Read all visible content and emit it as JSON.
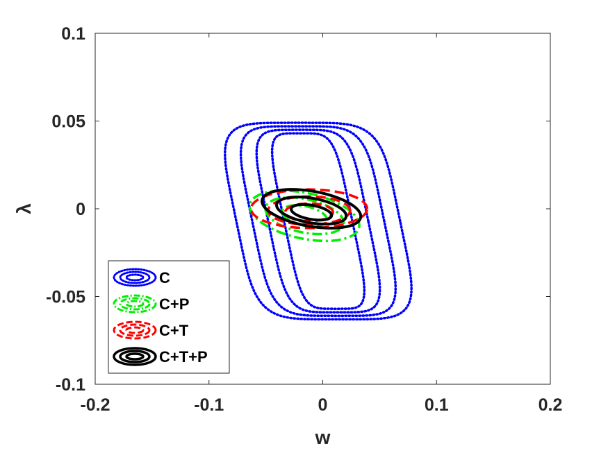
{
  "chart_data": {
    "type": "contour",
    "xlabel": "w",
    "ylabel": "λ",
    "xlim": [
      -0.2,
      0.2
    ],
    "ylim": [
      -0.1,
      0.1
    ],
    "xticks": [
      "-0.2",
      "-0.1",
      "0",
      "0.1",
      "0.2"
    ],
    "yticks": [
      "-0.1",
      "-0.05",
      "0",
      "0.05",
      "0.1"
    ],
    "grid": false,
    "legend_position": "bottom-left",
    "series": [
      {
        "name": "C",
        "color": "#0000ff",
        "line_style": "dotted",
        "shape": "rounded-rectangle",
        "contours": [
          {
            "center": [
              -0.004,
              -0.007
            ],
            "half_width": 0.072,
            "half_height": 0.056,
            "skew": -0.32
          },
          {
            "center": [
              -0.004,
              -0.007
            ],
            "half_width": 0.058,
            "half_height": 0.054,
            "skew": -0.32
          },
          {
            "center": [
              -0.004,
              -0.007
            ],
            "half_width": 0.044,
            "half_height": 0.052,
            "skew": -0.32
          },
          {
            "center": [
              -0.004,
              -0.007
            ],
            "half_width": 0.03,
            "half_height": 0.05,
            "skew": -0.32
          }
        ]
      },
      {
        "name": "C+P",
        "color": "#00ee00",
        "line_style": "dash-dot",
        "shape": "ellipse",
        "contours": [
          {
            "center": [
              -0.016,
              -0.004
            ],
            "rx": 0.049,
            "ry": 0.013,
            "rotation_deg": 12
          },
          {
            "center": [
              -0.016,
              -0.004
            ],
            "rx": 0.035,
            "ry": 0.0095,
            "rotation_deg": 12
          },
          {
            "center": [
              -0.016,
              -0.004
            ],
            "rx": 0.02,
            "ry": 0.0055,
            "rotation_deg": 12
          }
        ]
      },
      {
        "name": "C+T",
        "color": "#ff0000",
        "line_style": "dashed",
        "shape": "ellipse",
        "contours": [
          {
            "center": [
              -0.012,
              0.0
            ],
            "rx": 0.051,
            "ry": 0.011,
            "rotation_deg": 0
          },
          {
            "center": [
              -0.012,
              -0.001
            ],
            "rx": 0.036,
            "ry": 0.008,
            "rotation_deg": 0
          },
          {
            "center": [
              -0.012,
              -0.002
            ],
            "rx": 0.021,
            "ry": 0.005,
            "rotation_deg": 0
          }
        ]
      },
      {
        "name": "C+T+P",
        "color": "#000000",
        "line_style": "solid",
        "shape": "ellipse",
        "contours": [
          {
            "center": [
              -0.01,
              0.0
            ],
            "rx": 0.044,
            "ry": 0.01,
            "rotation_deg": 10
          },
          {
            "center": [
              -0.01,
              -0.001
            ],
            "rx": 0.031,
            "ry": 0.007,
            "rotation_deg": 10
          },
          {
            "center": [
              -0.01,
              -0.002
            ],
            "rx": 0.018,
            "ry": 0.004,
            "rotation_deg": 10
          }
        ]
      }
    ]
  }
}
